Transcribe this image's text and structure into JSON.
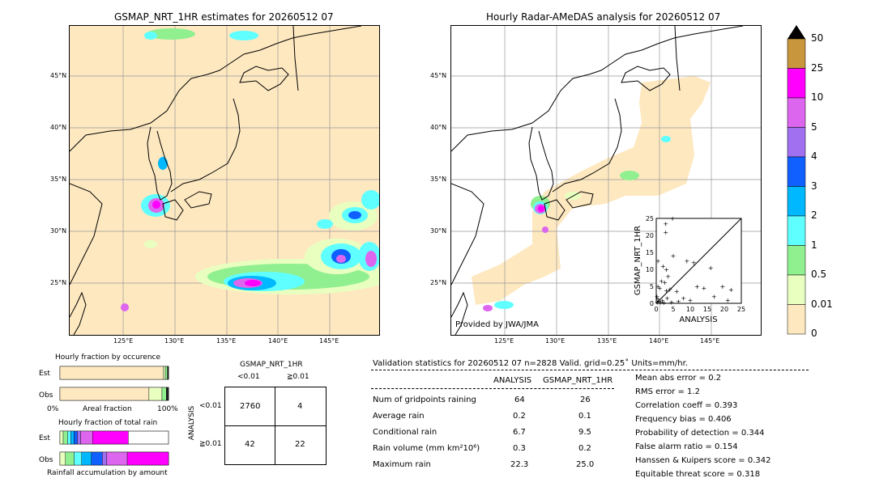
{
  "left_map": {
    "title": "GSMAP_NRT_1HR estimates for 20260512 07",
    "lat_labels": [
      "45°N",
      "40°N",
      "35°N",
      "30°N",
      "25°N"
    ],
    "lon_labels": [
      "125°E",
      "130°E",
      "135°E",
      "140°E",
      "145°E"
    ]
  },
  "right_map": {
    "title": "Hourly Radar-AMeDAS analysis for 20260512 07",
    "lat_labels": [
      "45°N",
      "40°N",
      "35°N",
      "30°N",
      "25°N"
    ],
    "lon_labels": [
      "125°E",
      "130°E",
      "135°E",
      "140°E",
      "145°E"
    ],
    "credit": "Provided by JWA/JMA"
  },
  "colorbar": {
    "labels": [
      "50",
      "25",
      "10",
      "5",
      "4",
      "3",
      "2",
      "1",
      "0.5",
      "0.01",
      "0"
    ],
    "colors": [
      "#c8963c",
      "#ff00ff",
      "#dd66ee",
      "#a070f0",
      "#1060ff",
      "#00b8ff",
      "#60ffff",
      "#90f090",
      "#e8ffc0",
      "#fee8c0"
    ]
  },
  "chart_data": [
    {
      "type": "scatter",
      "xlabel": "ANALYSIS",
      "ylabel": "GSMAP_NRT_1HR",
      "xlim": [
        0,
        25
      ],
      "ylim": [
        0,
        25
      ],
      "xticks": [
        "0",
        "5",
        "10",
        "15",
        "20",
        "25"
      ],
      "yticks": [
        "0",
        "5",
        "10",
        "15",
        "20",
        "25"
      ],
      "points": [
        [
          2.8,
          23.5
        ],
        [
          2.8,
          21
        ],
        [
          4.8,
          25
        ],
        [
          0.5,
          12.5
        ],
        [
          2,
          11
        ],
        [
          3,
          10
        ],
        [
          5,
          14
        ],
        [
          3.5,
          8
        ],
        [
          1.5,
          6.5
        ],
        [
          2.5,
          6.2
        ],
        [
          0.5,
          5
        ],
        [
          1,
          4.5
        ],
        [
          3,
          3.8
        ],
        [
          4,
          4.2
        ],
        [
          6,
          3.6
        ],
        [
          9,
          12.5
        ],
        [
          11,
          12
        ],
        [
          16,
          10.5
        ],
        [
          12,
          5
        ],
        [
          14,
          4.5
        ],
        [
          19.5,
          5
        ],
        [
          22,
          4
        ],
        [
          17,
          2
        ],
        [
          8,
          1.5
        ],
        [
          10,
          1
        ],
        [
          21,
          1
        ],
        [
          0.3,
          0.4
        ],
        [
          0.8,
          0.6
        ],
        [
          1.2,
          0.3
        ],
        [
          0.5,
          1.3
        ],
        [
          1.8,
          0.8
        ],
        [
          0.2,
          2
        ],
        [
          2.2,
          0.2
        ],
        [
          4.5,
          0.4
        ],
        [
          6.5,
          0.6
        ],
        [
          3.2,
          1.6
        ]
      ]
    },
    {
      "type": "bar",
      "title": "Hourly fraction by occurence",
      "categories": [
        "Est",
        "Obs"
      ],
      "xlabel": "Areal fraction",
      "xtick_left": "0%",
      "xtick_right": "100%",
      "series": [
        {
          "values": [
            0.95,
            0.82
          ],
          "color": "#fee8c0"
        },
        {
          "values": [
            0.02,
            0.12
          ],
          "color": "#e8ffc0"
        },
        {
          "values": [
            0.02,
            0.04
          ],
          "color": "#90f090"
        },
        {
          "values": [
            0.01,
            0.02
          ],
          "color": "#222222"
        }
      ]
    },
    {
      "type": "bar",
      "title": "Hourly fraction of total rain",
      "categories": [
        "Est",
        "Obs"
      ],
      "xlabel": "Rainfall accumulation by amount",
      "series": [
        {
          "values": [
            0.03,
            0.05
          ],
          "color": "#e8ffc0"
        },
        {
          "values": [
            0.04,
            0.08
          ],
          "color": "#90f090"
        },
        {
          "values": [
            0.03,
            0.07
          ],
          "color": "#60ffff"
        },
        {
          "values": [
            0.03,
            0.09
          ],
          "color": "#00b8ff"
        },
        {
          "values": [
            0.03,
            0.1
          ],
          "color": "#1060ff"
        },
        {
          "values": [
            0.03,
            0.04
          ],
          "color": "#a070f0"
        },
        {
          "values": [
            0.11,
            0.19
          ],
          "color": "#dd66ee"
        },
        {
          "values": [
            0.33,
            0.38
          ],
          "color": "#ff00ff"
        }
      ]
    }
  ],
  "contingency": {
    "title": "GSMAP_NRT_1HR",
    "col_headers": [
      "<0.01",
      "≧0.01"
    ],
    "row_headers": [
      "<0.01",
      "≧0.01"
    ],
    "row_axis": "ANALYSIS",
    "cells": [
      [
        "2760",
        "4"
      ],
      [
        "42",
        "22"
      ]
    ]
  },
  "validation": {
    "header": "Validation statistics for 20260512 07  n=2828 Valid. grid=0.25˚ Units=mm/hr.",
    "col_analysis": "ANALYSIS",
    "col_gsmap": "GSMAP_NRT_1HR",
    "rows": [
      {
        "label": "Num of gridpoints raining",
        "analysis": "64",
        "gsmap": "26"
      },
      {
        "label": "Average rain",
        "analysis": "0.2",
        "gsmap": "0.1"
      },
      {
        "label": "Conditional rain",
        "analysis": "6.7",
        "gsmap": "9.5"
      },
      {
        "label": "Rain volume (mm km²10⁶)",
        "analysis": "0.3",
        "gsmap": "0.2"
      },
      {
        "label": "Maximum rain",
        "analysis": "22.3",
        "gsmap": "25.0"
      }
    ],
    "scores": [
      "Mean abs error =    0.2",
      "RMS error =    1.2",
      "Correlation coeff =  0.393",
      "Frequency bias =  0.406",
      "Probability of detection =  0.344",
      "False alarm ratio =  0.154",
      "Hanssen & Kuipers score =  0.342",
      "Equitable threat score =  0.318"
    ]
  }
}
